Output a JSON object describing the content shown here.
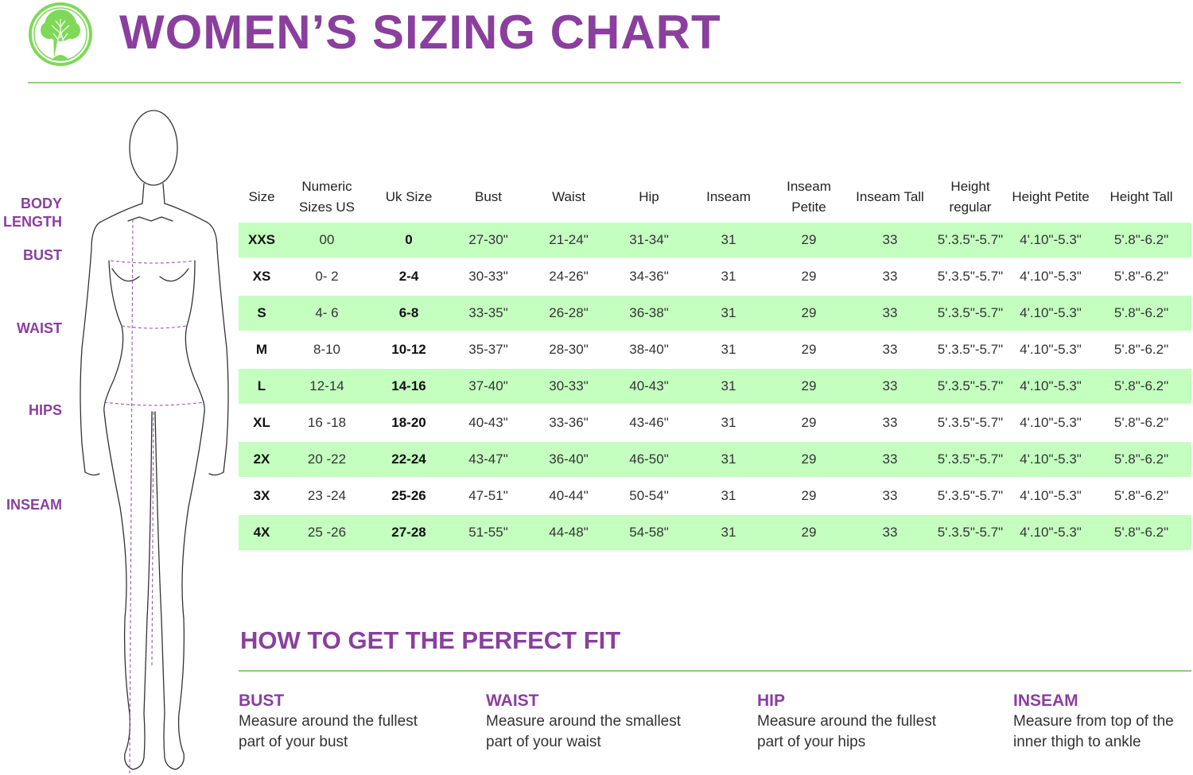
{
  "title": "WOMEN’S SIZING CHART",
  "colors": {
    "accent": "#8a3f9e",
    "rule": "#8ed07a",
    "row_highlight": "#c4ffc0",
    "logo": "#7ed957"
  },
  "logo_icon": "tree-icon",
  "body_labels": [
    {
      "label": "BODY LENGTH",
      "lines": [
        "BODY",
        "LENGTH"
      ]
    },
    {
      "label": "BUST",
      "lines": [
        "BUST"
      ]
    },
    {
      "label": "WAIST",
      "lines": [
        "WAIST"
      ]
    },
    {
      "label": "HIPS",
      "lines": [
        "HIPS"
      ]
    },
    {
      "label": "INSEAM",
      "lines": [
        "INSEAM"
      ]
    }
  ],
  "table": {
    "headers": [
      "Size",
      "Numeric Sizes US",
      "Uk Size",
      "Bust",
      "Waist",
      "Hip",
      "Inseam",
      "Inseam Petite",
      "Inseam Tall",
      "Height regular",
      "Height Petite",
      "Height Tall"
    ],
    "rows": [
      [
        "XXS",
        "00",
        "0",
        "27-30\"",
        "21-24\"",
        "31-34\"",
        "31",
        "29",
        "33",
        "5'.3.5\"-5.7\"",
        "4'.10\"-5.3\"",
        "5'.8\"-6.2\""
      ],
      [
        "XS",
        "0- 2",
        "2-4",
        "30-33\"",
        "24-26\"",
        "34-36\"",
        "31",
        "29",
        "33",
        "5'.3.5\"-5.7\"",
        "4'.10\"-5.3\"",
        "5'.8\"-6.2\""
      ],
      [
        "S",
        "4- 6",
        "6-8",
        "33-35\"",
        "26-28\"",
        "36-38\"",
        "31",
        "29",
        "33",
        "5'.3.5\"-5.7\"",
        "4'.10\"-5.3\"",
        "5'.8\"-6.2\""
      ],
      [
        "M",
        "8-10",
        "10-12",
        "35-37\"",
        "28-30\"",
        "38-40\"",
        "31",
        "29",
        "33",
        "5'.3.5\"-5.7\"",
        "4'.10\"-5.3\"",
        "5'.8\"-6.2\""
      ],
      [
        "L",
        "12-14",
        "14-16",
        "37-40\"",
        "30-33\"",
        "40-43\"",
        "31",
        "29",
        "33",
        "5'.3.5\"-5.7\"",
        "4'.10\"-5.3\"",
        "5'.8\"-6.2\""
      ],
      [
        "XL",
        "16 -18",
        "18-20",
        "40-43\"",
        "33-36\"",
        "43-46\"",
        "31",
        "29",
        "33",
        "5'.3.5\"-5.7\"",
        "4'.10\"-5.3\"",
        "5'.8\"-6.2\""
      ],
      [
        "2X",
        "20 -22",
        "22-24",
        "43-47\"",
        "36-40\"",
        "46-50\"",
        "31",
        "29",
        "33",
        "5'.3.5\"-5.7\"",
        "4'.10\"-5.3\"",
        "5'.8\"-6.2\""
      ],
      [
        "3X",
        "23 -24",
        "25-26",
        "47-51\"",
        "40-44\"",
        "50-54\"",
        "31",
        "29",
        "33",
        "5'.3.5\"-5.7\"",
        "4'.10\"-5.3\"",
        "5'.8\"-6.2\""
      ],
      [
        "4X",
        "25 -26",
        "27-28",
        "51-55\"",
        "44-48\"",
        "54-58\"",
        "31",
        "29",
        "33",
        "5'.3.5\"-5.7\"",
        "4'.10\"-5.3\"",
        "5'.8\"-6.2\""
      ]
    ]
  },
  "fit": {
    "title": "HOW TO GET THE PERFECT FIT",
    "tips": [
      {
        "heading": "BUST",
        "text": "Measure around the fullest part of your bust"
      },
      {
        "heading": "WAIST",
        "text": "Measure around the smallest part of your waist"
      },
      {
        "heading": "HIP",
        "text": "Measure around the fullest part of your hips"
      },
      {
        "heading": "INSEAM",
        "text": "Measure from top of the inner thigh to ankle"
      }
    ]
  }
}
